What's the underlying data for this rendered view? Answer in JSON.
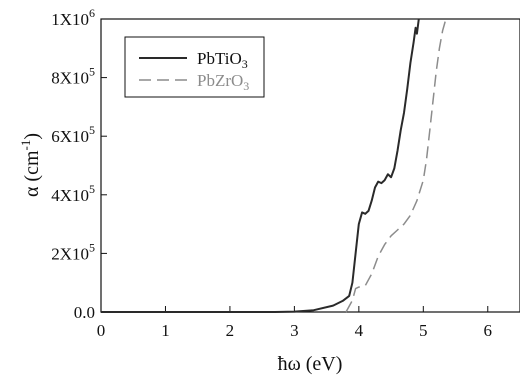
{
  "chart_data": {
    "type": "line",
    "xlabel": "ħω (eV)",
    "ylabel_symbol": "α",
    "ylabel_unit": "(cm",
    "ylabel_unit_exp": "-1",
    "ylabel_close": ")",
    "xlim": [
      0,
      6.5
    ],
    "ylim": [
      0,
      1000000
    ],
    "x_ticks": [
      {
        "value": 0,
        "label": "0"
      },
      {
        "value": 1,
        "label": "1"
      },
      {
        "value": 2,
        "label": "2"
      },
      {
        "value": 3,
        "label": "3"
      },
      {
        "value": 4,
        "label": "4"
      },
      {
        "value": 5,
        "label": "5"
      },
      {
        "value": 6,
        "label": "6"
      }
    ],
    "y_ticks": [
      {
        "value": 0,
        "mant": "0.0",
        "exp": ""
      },
      {
        "value": 200000,
        "mant": "2X10",
        "exp": "5"
      },
      {
        "value": 400000,
        "mant": "4X10",
        "exp": "5"
      },
      {
        "value": 600000,
        "mant": "6X10",
        "exp": "5"
      },
      {
        "value": 800000,
        "mant": "8X10",
        "exp": "5"
      },
      {
        "value": 1000000,
        "mant": "1X10",
        "exp": "6"
      }
    ],
    "grid": false,
    "legend_position": "top-left",
    "series": [
      {
        "name": "PbTiO",
        "name_sub": "3",
        "color": "#2a2a2a",
        "dash": "solid",
        "points": [
          [
            0,
            0
          ],
          [
            1,
            0
          ],
          [
            2,
            0
          ],
          [
            2.7,
            0
          ],
          [
            3.0,
            1500
          ],
          [
            3.3,
            6000
          ],
          [
            3.6,
            22000
          ],
          [
            3.75,
            38000
          ],
          [
            3.85,
            55000
          ],
          [
            3.9,
            100000
          ],
          [
            3.95,
            200000
          ],
          [
            4.0,
            300000
          ],
          [
            4.05,
            340000
          ],
          [
            4.1,
            335000
          ],
          [
            4.15,
            345000
          ],
          [
            4.2,
            380000
          ],
          [
            4.25,
            425000
          ],
          [
            4.3,
            445000
          ],
          [
            4.35,
            440000
          ],
          [
            4.4,
            450000
          ],
          [
            4.45,
            470000
          ],
          [
            4.5,
            460000
          ],
          [
            4.55,
            490000
          ],
          [
            4.6,
            550000
          ],
          [
            4.65,
            620000
          ],
          [
            4.7,
            680000
          ],
          [
            4.75,
            760000
          ],
          [
            4.8,
            850000
          ],
          [
            4.85,
            920000
          ],
          [
            4.88,
            970000
          ],
          [
            4.9,
            950000
          ],
          [
            4.93,
            1000000
          ]
        ]
      },
      {
        "name": "PbZrO",
        "name_sub": "3",
        "color": "#8c8c8c",
        "dash": "dashed",
        "points": [
          [
            3.8,
            0
          ],
          [
            3.9,
            40000
          ],
          [
            3.95,
            80000
          ],
          [
            4.0,
            85000
          ],
          [
            4.1,
            90000
          ],
          [
            4.2,
            130000
          ],
          [
            4.3,
            190000
          ],
          [
            4.4,
            230000
          ],
          [
            4.5,
            260000
          ],
          [
            4.6,
            280000
          ],
          [
            4.7,
            300000
          ],
          [
            4.8,
            330000
          ],
          [
            4.9,
            380000
          ],
          [
            5.0,
            450000
          ],
          [
            5.05,
            520000
          ],
          [
            5.1,
            620000
          ],
          [
            5.15,
            720000
          ],
          [
            5.2,
            820000
          ],
          [
            5.25,
            900000
          ],
          [
            5.3,
            960000
          ],
          [
            5.35,
            1000000
          ]
        ]
      }
    ]
  }
}
